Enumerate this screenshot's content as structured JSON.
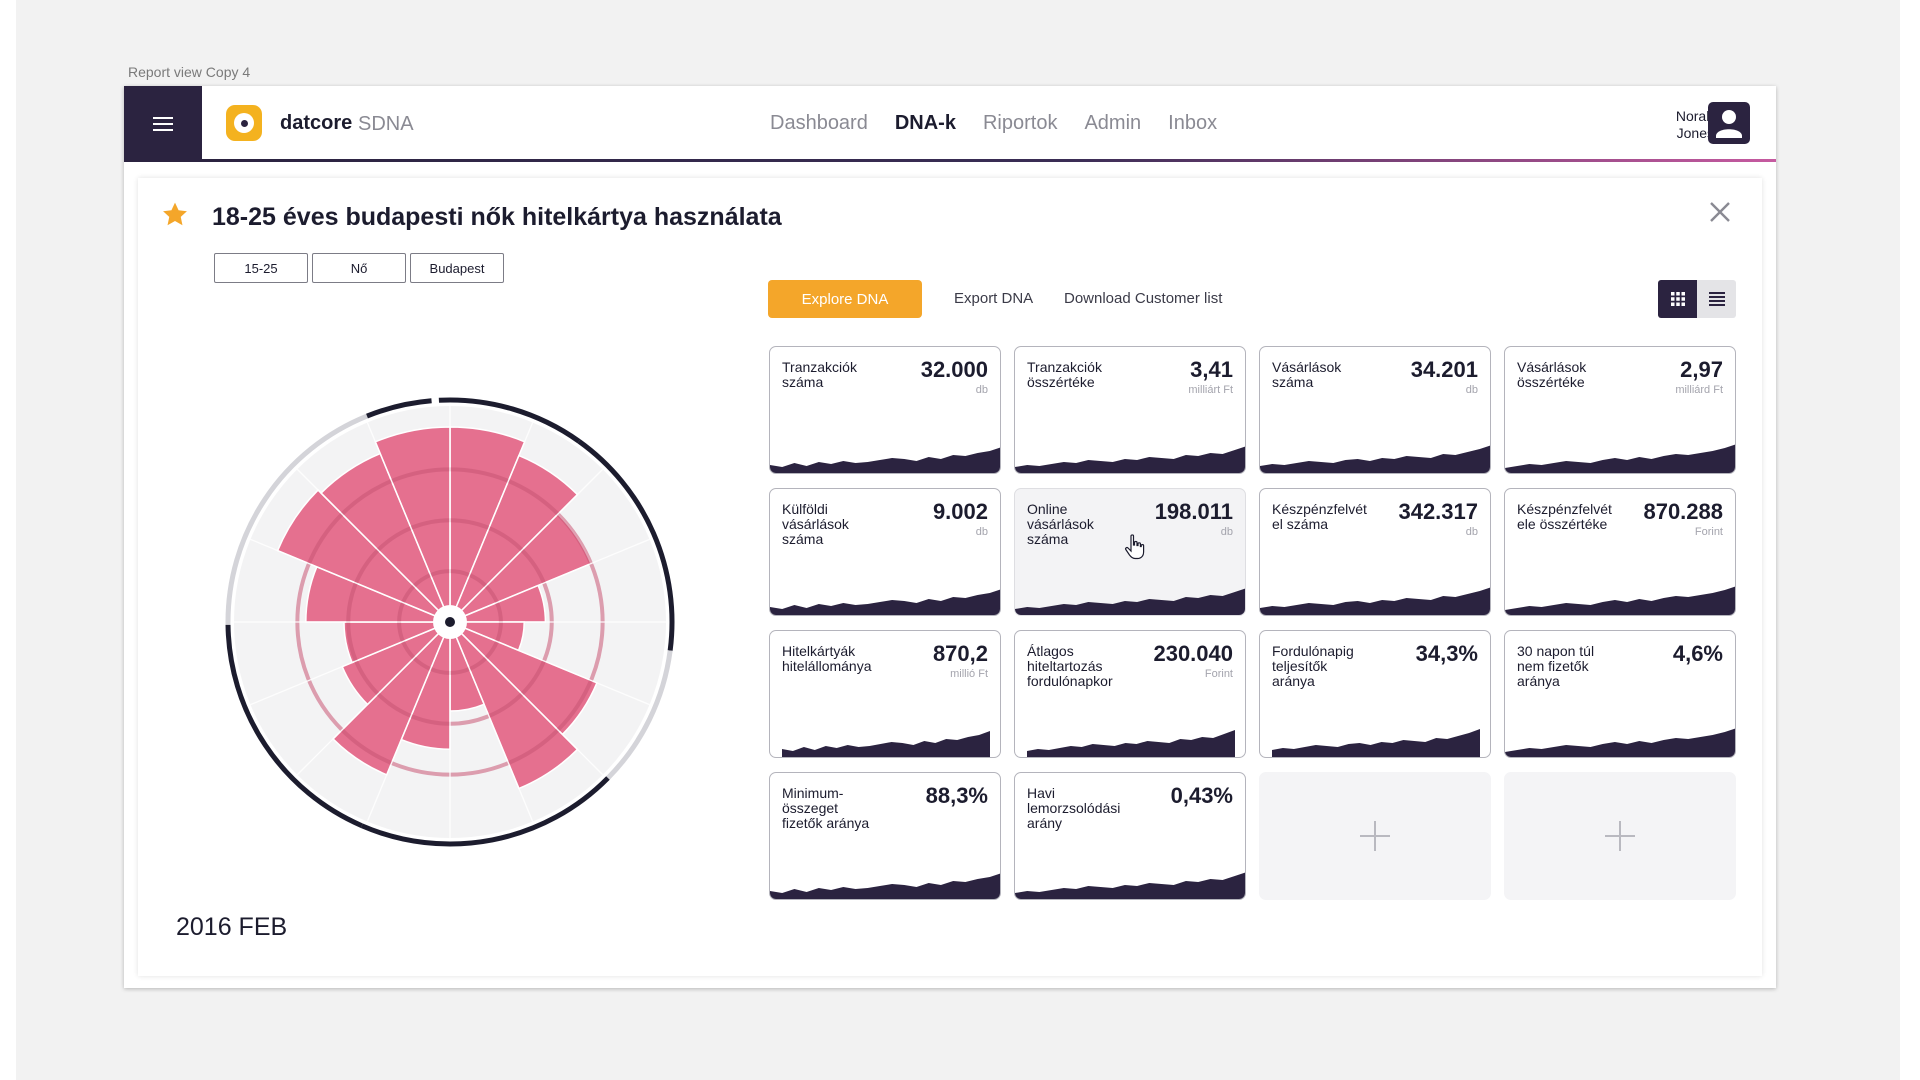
{
  "artboard": {
    "label": "Report view Copy 4"
  },
  "header": {
    "brand": "datcore",
    "product": "SDNA",
    "nav": [
      {
        "label": "Dashboard",
        "active": false
      },
      {
        "label": "DNA-k",
        "active": true
      },
      {
        "label": "Riportok",
        "active": false
      },
      {
        "label": "Admin",
        "active": false
      },
      {
        "label": "Inbox",
        "active": false
      }
    ],
    "user": {
      "first": "Norah",
      "last": "Jones"
    },
    "icons": [
      "hamburger-menu-icon",
      "datcore-logo-icon",
      "user-avatar-icon"
    ]
  },
  "report": {
    "title": "18-25 éves budapesti nők hitelkártya használata",
    "starred": true,
    "tags": [
      "15-25",
      "Nő",
      "Budapest"
    ],
    "date": "2016 FEB"
  },
  "actions": {
    "explore": "Explore DNA",
    "export": "Export DNA",
    "download": "Download Customer list",
    "view_mode": "grid"
  },
  "colors": {
    "accent": "#f4a62a",
    "dark": "#2b2340",
    "rose": "#e5708f",
    "gradient_end": "#c65aa0"
  },
  "chart_data": {
    "type": "polar-area",
    "segments": 16,
    "values": [
      0.92,
      0.85,
      0.72,
      0.45,
      0.35,
      0.75,
      0.85,
      0.42,
      0.6,
      0.78,
      0.55,
      0.5,
      0.68,
      0.88,
      0.86,
      0.92
    ]
  },
  "cards": [
    {
      "label": "Tranzakciók száma",
      "value": "32.000",
      "unit": "db"
    },
    {
      "label": "Tranzakciók összértéke",
      "value": "3,41",
      "unit": "milliárt Ft"
    },
    {
      "label": "Vásárlások száma",
      "value": "34.201",
      "unit": "db"
    },
    {
      "label": "Vásárlások összértéke",
      "value": "2,97",
      "unit": "milliárd Ft"
    },
    {
      "label": "Külföldi vásárlások száma",
      "value": "9.002",
      "unit": "db"
    },
    {
      "label": "Online vásárlások száma",
      "value": "198.011",
      "unit": "db",
      "hover": true
    },
    {
      "label": "Készpénzfelvét el száma",
      "value": "342.317",
      "unit": "db"
    },
    {
      "label": "Készpénzfelvét ele összértéke",
      "value": "870.288",
      "unit": "Forint"
    },
    {
      "label": "Hitelkártyák hitelállománya",
      "value": "870,2",
      "unit": "millió Ft"
    },
    {
      "label": "Átlagos hiteltartozás fordulónapkor",
      "value": "230.040",
      "unit": "Forint"
    },
    {
      "label": "Fordulónapig teljesítők aránya",
      "value": "34,3%",
      "unit": ""
    },
    {
      "label": "30 napon túl nem fizetők aránya",
      "value": "4,6%",
      "unit": ""
    },
    {
      "label": "Minimum-összeget fizetők aránya",
      "value": "88,3%",
      "unit": ""
    },
    {
      "label": "Havi lemorzsolódási arány",
      "value": "0,43%",
      "unit": ""
    }
  ],
  "add_slots": 2
}
